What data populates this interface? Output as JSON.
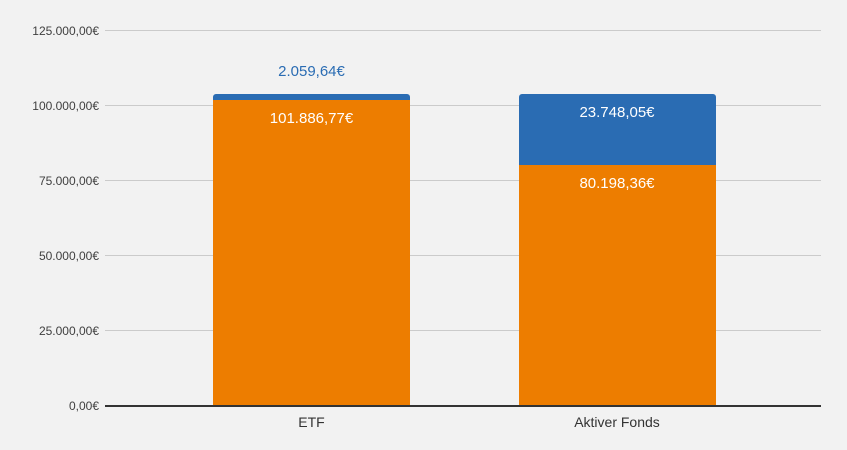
{
  "chart_data": {
    "type": "bar",
    "stacked": true,
    "title": "",
    "xlabel": "",
    "ylabel": "",
    "categories": [
      "ETF",
      "Aktiver Fonds"
    ],
    "series": [
      {
        "name": "orange",
        "color": "#ED7D00",
        "values": [
          101886.77,
          80198.36
        ],
        "labels": [
          "101.886,77€",
          "80.198,36€"
        ]
      },
      {
        "name": "blue",
        "color": "#2A6CB3",
        "values": [
          2059.64,
          23748.05
        ],
        "labels": [
          "2.059,64€",
          "23.748,05€"
        ]
      }
    ],
    "totals": [
      103946.41,
      103946.41
    ],
    "ylim": [
      0,
      125000
    ],
    "yticks": [
      0,
      25000,
      50000,
      75000,
      100000,
      125000
    ],
    "ytick_labels": [
      "0,00€",
      "25.000,00€",
      "50.000,00€",
      "75.000,00€",
      "100.000,00€",
      "125.000,00€"
    ],
    "grid": true,
    "legend_position": "none"
  },
  "colors": {
    "background": "#F2F2F2",
    "gridline": "#CBCBCB",
    "baseline": "#333333",
    "ytick_text": "#404040",
    "xlabel_text": "#333333",
    "inside_label_text": "#FFFFFF"
  }
}
